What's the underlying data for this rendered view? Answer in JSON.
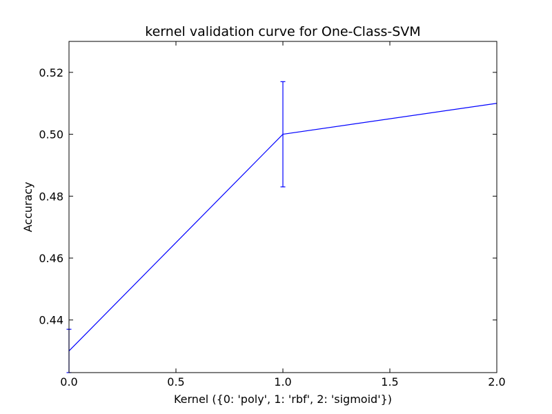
{
  "chart_data": {
    "type": "line",
    "title": "kernel validation curve for One-Class-SVM",
    "xlabel": "Kernel ({0: 'poly', 1: 'rbf', 2: 'sigmoid'})",
    "ylabel": "Accuracy",
    "xlim": [
      0.0,
      2.0
    ],
    "ylim": [
      0.423,
      0.53
    ],
    "x_ticks": [
      0.0,
      0.5,
      1.0,
      1.5,
      2.0
    ],
    "x_tick_labels": [
      "0.0",
      "0.5",
      "1.0",
      "1.5",
      "2.0"
    ],
    "y_ticks": [
      0.44,
      0.46,
      0.48,
      0.5,
      0.52
    ],
    "y_tick_labels": [
      "0.44",
      "0.46",
      "0.48",
      "0.50",
      "0.52"
    ],
    "grid": false,
    "series": [
      {
        "x": [
          0,
          1,
          2
        ],
        "y": [
          0.43,
          0.5,
          0.51
        ],
        "yerr": [
          0.007,
          0.017,
          0.0
        ],
        "color": "#0000ff"
      }
    ]
  }
}
